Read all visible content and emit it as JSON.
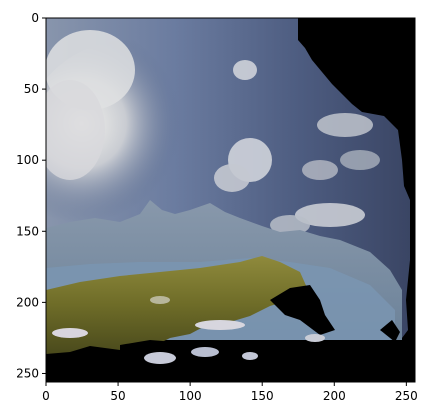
{
  "figure": {
    "x_ticks": [
      "0",
      "50",
      "100",
      "150",
      "200",
      "250"
    ],
    "y_ticks": [
      "0",
      "50",
      "100",
      "150",
      "200",
      "250"
    ],
    "image_extent": {
      "x": [
        0,
        256
      ],
      "y": [
        0,
        256
      ]
    },
    "image_description_colors": {
      "sky_light": "#e9e8e2",
      "sky_blue": "#5d6f93",
      "sky_dark": "#3f4b6a",
      "mountain": "#7f93a6",
      "water": "#6f8eae",
      "grass": "#7d7a2f",
      "grass_dark": "#4b4a1a",
      "snow": "#d9d6df",
      "void": "#000000"
    }
  }
}
